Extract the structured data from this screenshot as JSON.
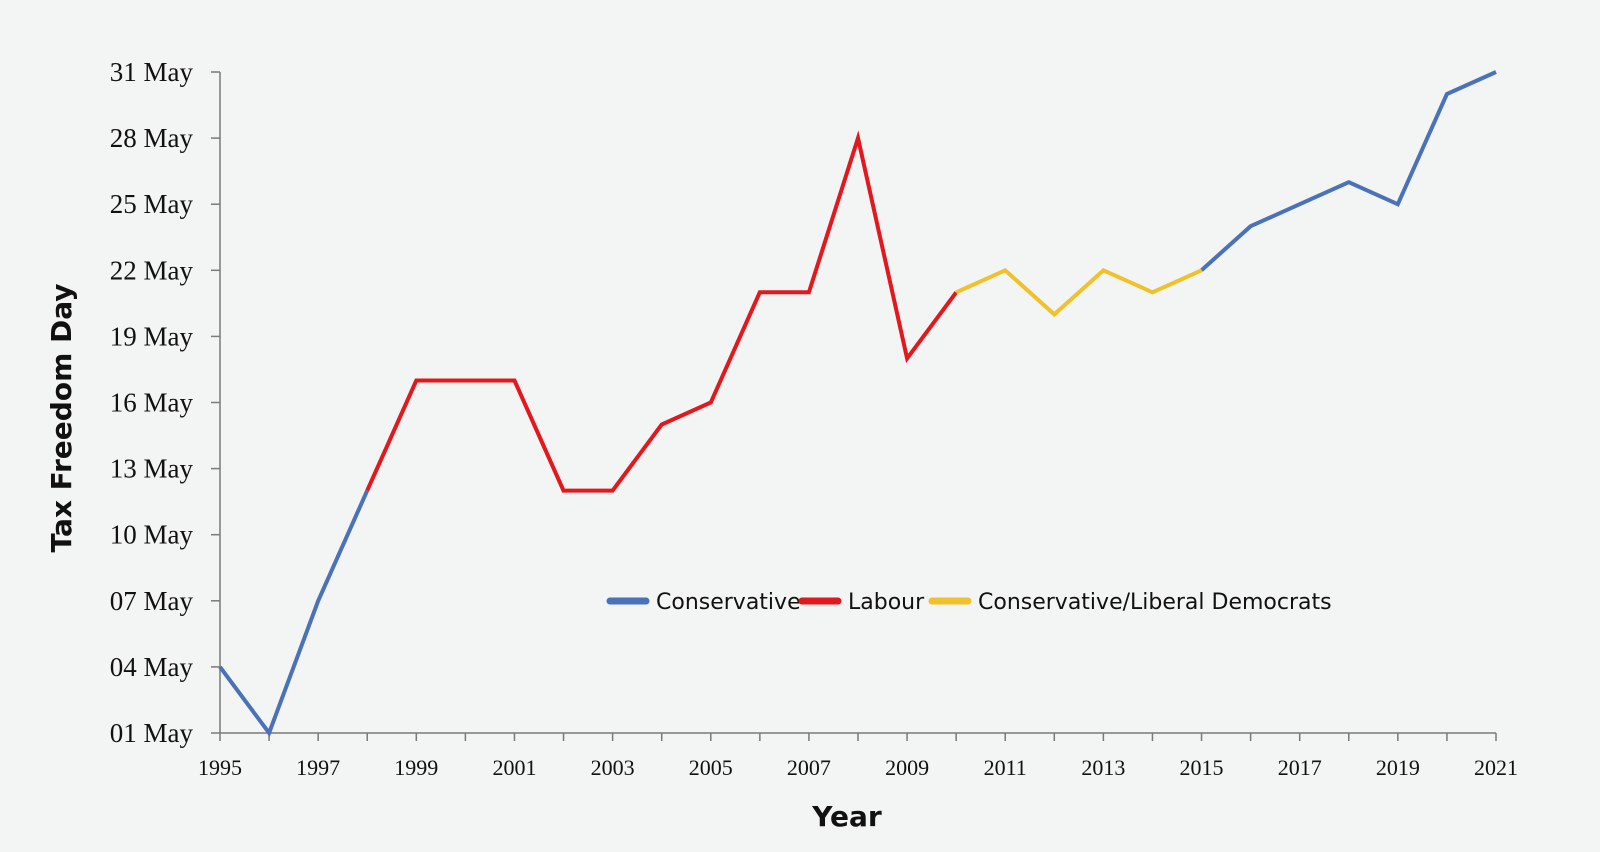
{
  "chart_data": {
    "type": "line",
    "title": "",
    "xlabel": "Year",
    "ylabel": "Tax Freedom Day",
    "x": [
      1995,
      1996,
      1997,
      1998,
      1999,
      2000,
      2001,
      2002,
      2003,
      2004,
      2005,
      2006,
      2007,
      2008,
      2009,
      2010,
      2011,
      2012,
      2013,
      2014,
      2015,
      2016,
      2017,
      2018,
      2019,
      2020,
      2021
    ],
    "values": [
      4,
      1,
      7,
      12,
      17,
      17,
      17,
      12,
      12,
      15,
      16,
      21,
      21,
      28,
      18,
      21,
      22,
      20,
      22,
      21,
      22,
      24,
      25,
      26,
      25,
      30,
      31
    ],
    "value_unit": "day of May",
    "xlim": [
      1995,
      2021
    ],
    "ylim": [
      1,
      31
    ],
    "xticks": [
      "1995",
      "1997",
      "1999",
      "2001",
      "2003",
      "2005",
      "2007",
      "2009",
      "2011",
      "2013",
      "2015",
      "2017",
      "2019",
      "2021"
    ],
    "yticks": [
      {
        "value": 1,
        "label": "01 May"
      },
      {
        "value": 4,
        "label": "04 May"
      },
      {
        "value": 7,
        "label": "07 May"
      },
      {
        "value": 10,
        "label": "10 May"
      },
      {
        "value": 13,
        "label": "13 May"
      },
      {
        "value": 16,
        "label": "16 May"
      },
      {
        "value": 19,
        "label": "19 May"
      },
      {
        "value": 22,
        "label": "22 May"
      },
      {
        "value": 25,
        "label": "25 May"
      },
      {
        "value": 28,
        "label": "28 May"
      },
      {
        "value": 31,
        "label": "31 May"
      }
    ],
    "series": [
      {
        "name": "Conservative",
        "color": "#4a72b8",
        "segments": [
          [
            1995,
            1998
          ],
          [
            2015,
            2021
          ]
        ]
      },
      {
        "name": "Labour",
        "color": "#e3181d",
        "segments": [
          [
            1998,
            2010
          ]
        ]
      },
      {
        "name": "Conservative/Liberal Democrats",
        "color": "#f1c12b",
        "segments": [
          [
            2010,
            2015
          ]
        ]
      }
    ],
    "legend": [
      "Conservative",
      "Labour",
      "Conservative/Liberal Democrats"
    ],
    "legend_position": "center-right",
    "grid": false
  }
}
